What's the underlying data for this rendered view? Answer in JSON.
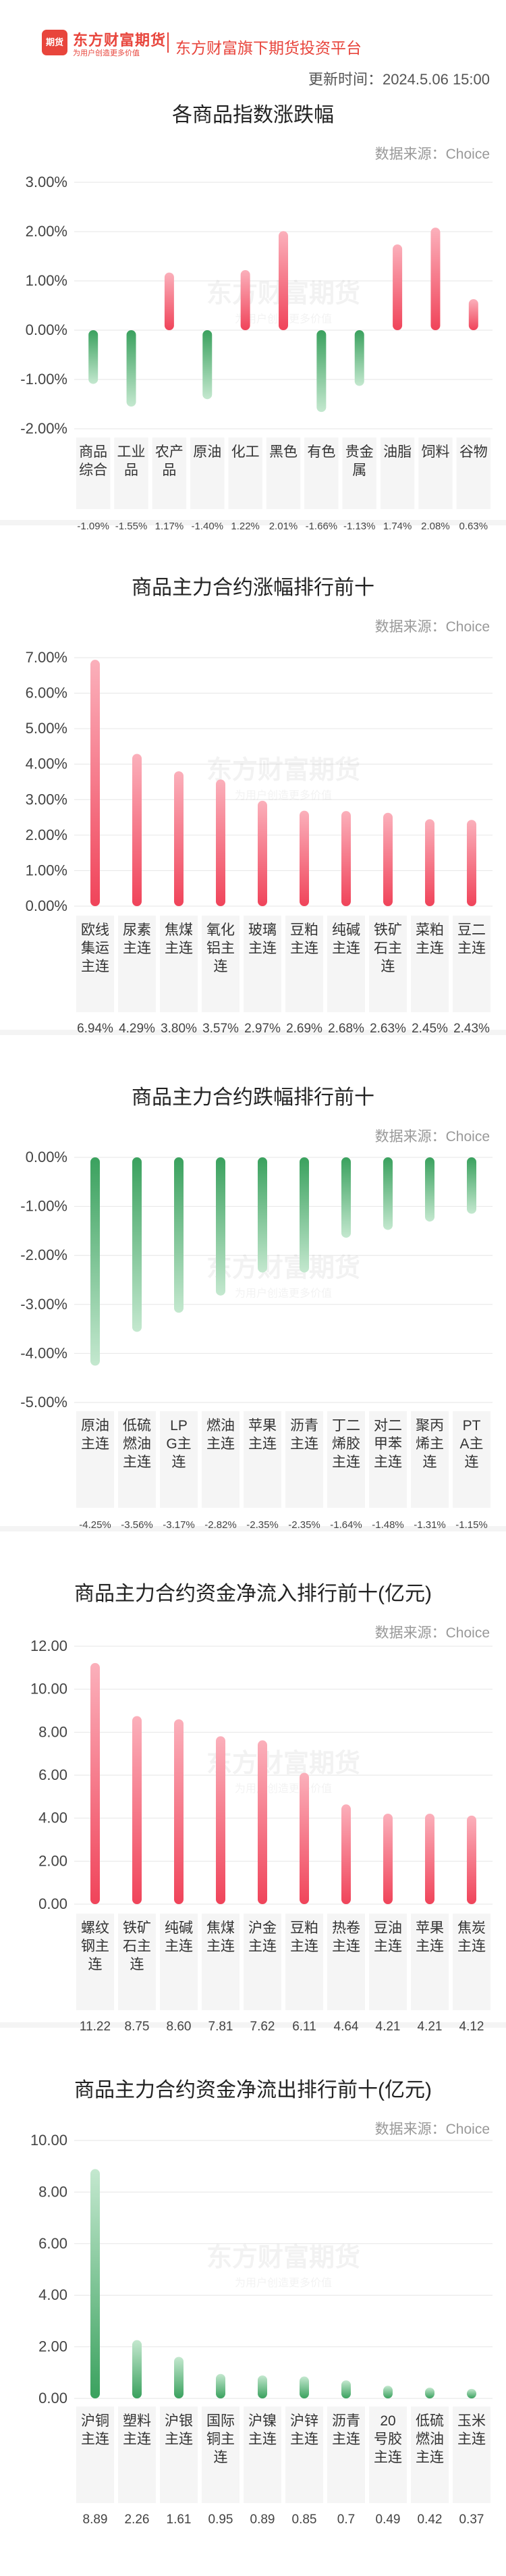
{
  "header": {
    "logo_badge": "期货",
    "logo_name": "东方财富期货",
    "logo_slogan": "为用户创造更多价值",
    "platform_name": "东方财富旗下期货投资平台",
    "update_time": "更新时间：2024.5.06 15:00"
  },
  "colors": {
    "up": "#f0445a",
    "down": "#3aa15e",
    "grid": "#e6e6e6",
    "label_bg": "#f5f5f5"
  },
  "chart_data": [
    {
      "type": "bar",
      "title": "各商品指数涨跌幅",
      "source": "数据来源：Choice",
      "categories": [
        "商品综合",
        "工业品",
        "农产品",
        "原油",
        "化工",
        "黑色",
        "有色",
        "贵金属",
        "油脂",
        "饲料",
        "谷物"
      ],
      "values": [
        -1.09,
        -1.55,
        1.17,
        -1.4,
        1.22,
        2.01,
        -1.66,
        -1.13,
        1.74,
        2.08,
        0.63
      ],
      "value_labels": [
        "-1.09%",
        "-1.55%",
        "1.17%",
        "-1.40%",
        "1.22%",
        "2.01%",
        "-1.66%",
        "-1.13%",
        "1.74%",
        "2.08%",
        "0.63%"
      ],
      "yticks": [
        "3.00%",
        "2.00%",
        "1.00%",
        "0.00%",
        "-1.00%",
        "-2.00%"
      ],
      "ylim": [
        -2,
        3
      ]
    },
    {
      "type": "bar",
      "title": "商品主力合约涨幅排行前十",
      "source": "数据来源：Choice",
      "categories": [
        "欧线集运主连",
        "尿素主连",
        "焦煤主连",
        "氧化铝主连",
        "玻璃主连",
        "豆粕主连",
        "纯碱主连",
        "铁矿石主连",
        "菜粕主连",
        "豆二主连"
      ],
      "values": [
        6.94,
        4.29,
        3.8,
        3.57,
        2.97,
        2.69,
        2.68,
        2.63,
        2.45,
        2.43
      ],
      "value_labels": [
        "6.94%",
        "4.29%",
        "3.80%",
        "3.57%",
        "2.97%",
        "2.69%",
        "2.68%",
        "2.63%",
        "2.45%",
        "2.43%"
      ],
      "yticks": [
        "7.00%",
        "6.00%",
        "5.00%",
        "4.00%",
        "3.00%",
        "2.00%",
        "1.00%",
        "0.00%"
      ],
      "ylim": [
        0,
        7
      ]
    },
    {
      "type": "bar",
      "title": "商品主力合约跌幅排行前十",
      "source": "数据来源：Choice",
      "categories": [
        "原油主连",
        "低硫燃油主连",
        "LPG主连",
        "燃油主连",
        "苹果主连",
        "沥青主连",
        "丁二烯胶主连",
        "对二甲苯主连",
        "聚丙烯主连",
        "PTA主连"
      ],
      "values": [
        -4.25,
        -3.56,
        -3.17,
        -2.82,
        -2.35,
        -2.35,
        -1.64,
        -1.48,
        -1.31,
        -1.15
      ],
      "value_labels": [
        "-4.25%",
        "-3.56%",
        "-3.17%",
        "-2.82%",
        "-2.35%",
        "-2.35%",
        "-1.64%",
        "-1.48%",
        "-1.31%",
        "-1.15%"
      ],
      "yticks": [
        "0.00%",
        "-1.00%",
        "-2.00%",
        "-3.00%",
        "-4.00%",
        "-5.00%"
      ],
      "ylim": [
        -5,
        0
      ]
    },
    {
      "type": "bar",
      "title": "商品主力合约资金净流入排行前十(亿元)",
      "source": "数据来源：Choice",
      "categories": [
        "螺纹钢主连",
        "铁矿石主连",
        "纯碱主连",
        "焦煤主连",
        "沪金主连",
        "豆粕主连",
        "热卷主连",
        "豆油主连",
        "苹果主连",
        "焦炭主连"
      ],
      "values": [
        11.22,
        8.75,
        8.6,
        7.81,
        7.62,
        6.11,
        4.64,
        4.21,
        4.21,
        4.12
      ],
      "value_labels": [
        "11.22",
        "8.75",
        "8.60",
        "7.81",
        "7.62",
        "6.11",
        "4.64",
        "4.21",
        "4.21",
        "4.12"
      ],
      "yticks": [
        "12.00",
        "10.00",
        "8.00",
        "6.00",
        "4.00",
        "2.00",
        "0.00"
      ],
      "ylim": [
        0,
        12
      ]
    },
    {
      "type": "bar",
      "title": "商品主力合约资金净流出排行前十(亿元)",
      "source": "数据来源：Choice",
      "categories": [
        "沪铜主连",
        "塑料主连",
        "沪银主连",
        "国际铜主连",
        "沪镍主连",
        "沪锌主连",
        "沥青主连",
        "20号胶主连",
        "低硫燃油主连",
        "玉米主连"
      ],
      "values": [
        8.89,
        2.26,
        1.61,
        0.95,
        0.89,
        0.85,
        0.7,
        0.49,
        0.42,
        0.37
      ],
      "value_labels": [
        "8.89",
        "2.26",
        "1.61",
        "0.95",
        "0.89",
        "0.85",
        "0.7",
        "0.49",
        "0.42",
        "0.37"
      ],
      "yticks": [
        "10.00",
        "8.00",
        "6.00",
        "4.00",
        "2.00",
        "0.00"
      ],
      "ylim": [
        0,
        10
      ]
    }
  ]
}
